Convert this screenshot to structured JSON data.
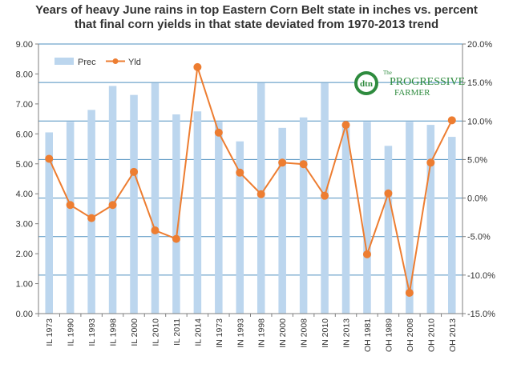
{
  "chart_data": {
    "type": "bar+line",
    "title_line1": "Years of heavy June rains in top Eastern Corn Belt state in inches vs. percent",
    "title_line2": "that final corn yields in that state deviated from 1970-2013 trend",
    "categories": [
      "IL 1973",
      "IL 1990",
      "IL 1993",
      "IL 1998",
      "IL 2000",
      "IL 2010",
      "IL 2011",
      "IL 2014",
      "IN 1973",
      "IN 1993",
      "IN 1998",
      "IN 2000",
      "IN 2008",
      "IN 2010",
      "IN 2013",
      "OH 1981",
      "OH 1989",
      "OH 2008",
      "OH 2010",
      "OH 2013"
    ],
    "series": [
      {
        "name": "Prec",
        "type": "bar",
        "axis": "left",
        "color": "#bcd6ee",
        "values": [
          6.05,
          6.4,
          6.8,
          7.6,
          7.3,
          7.7,
          6.65,
          6.75,
          6.4,
          5.75,
          7.7,
          6.2,
          6.55,
          7.7,
          6.35,
          6.4,
          5.6,
          6.4,
          6.3,
          5.9
        ]
      },
      {
        "name": "Yld",
        "type": "line",
        "axis": "right",
        "color": "#ed7d31",
        "values": [
          5.1,
          -0.9,
          -2.6,
          -0.9,
          3.4,
          -4.2,
          -5.3,
          17.0,
          8.5,
          3.3,
          0.5,
          4.6,
          4.4,
          0.3,
          9.5,
          -7.3,
          0.6,
          -12.3,
          4.6,
          10.1
        ]
      }
    ],
    "y_left": {
      "min": 0,
      "max": 9,
      "step": 1,
      "tick_labels": [
        "0.00",
        "1.00",
        "2.00",
        "3.00",
        "4.00",
        "5.00",
        "6.00",
        "7.00",
        "8.00",
        "9.00"
      ]
    },
    "y_right": {
      "min": -15,
      "max": 20,
      "step": 5,
      "tick_labels": [
        "-15.0%",
        "-10.0%",
        "-5.0%",
        "0.0%",
        "5.0%",
        "10.0%",
        "15.0%",
        "20.0%"
      ]
    },
    "gridlines": "horizontal, from right axis",
    "legend": {
      "position": "top-left",
      "entries": [
        "Prec",
        "Yld"
      ]
    }
  },
  "logo": {
    "mark": "dtn",
    "line1": "PROGRESSIVE",
    "prefix": "The",
    "line2": "FARMER"
  }
}
